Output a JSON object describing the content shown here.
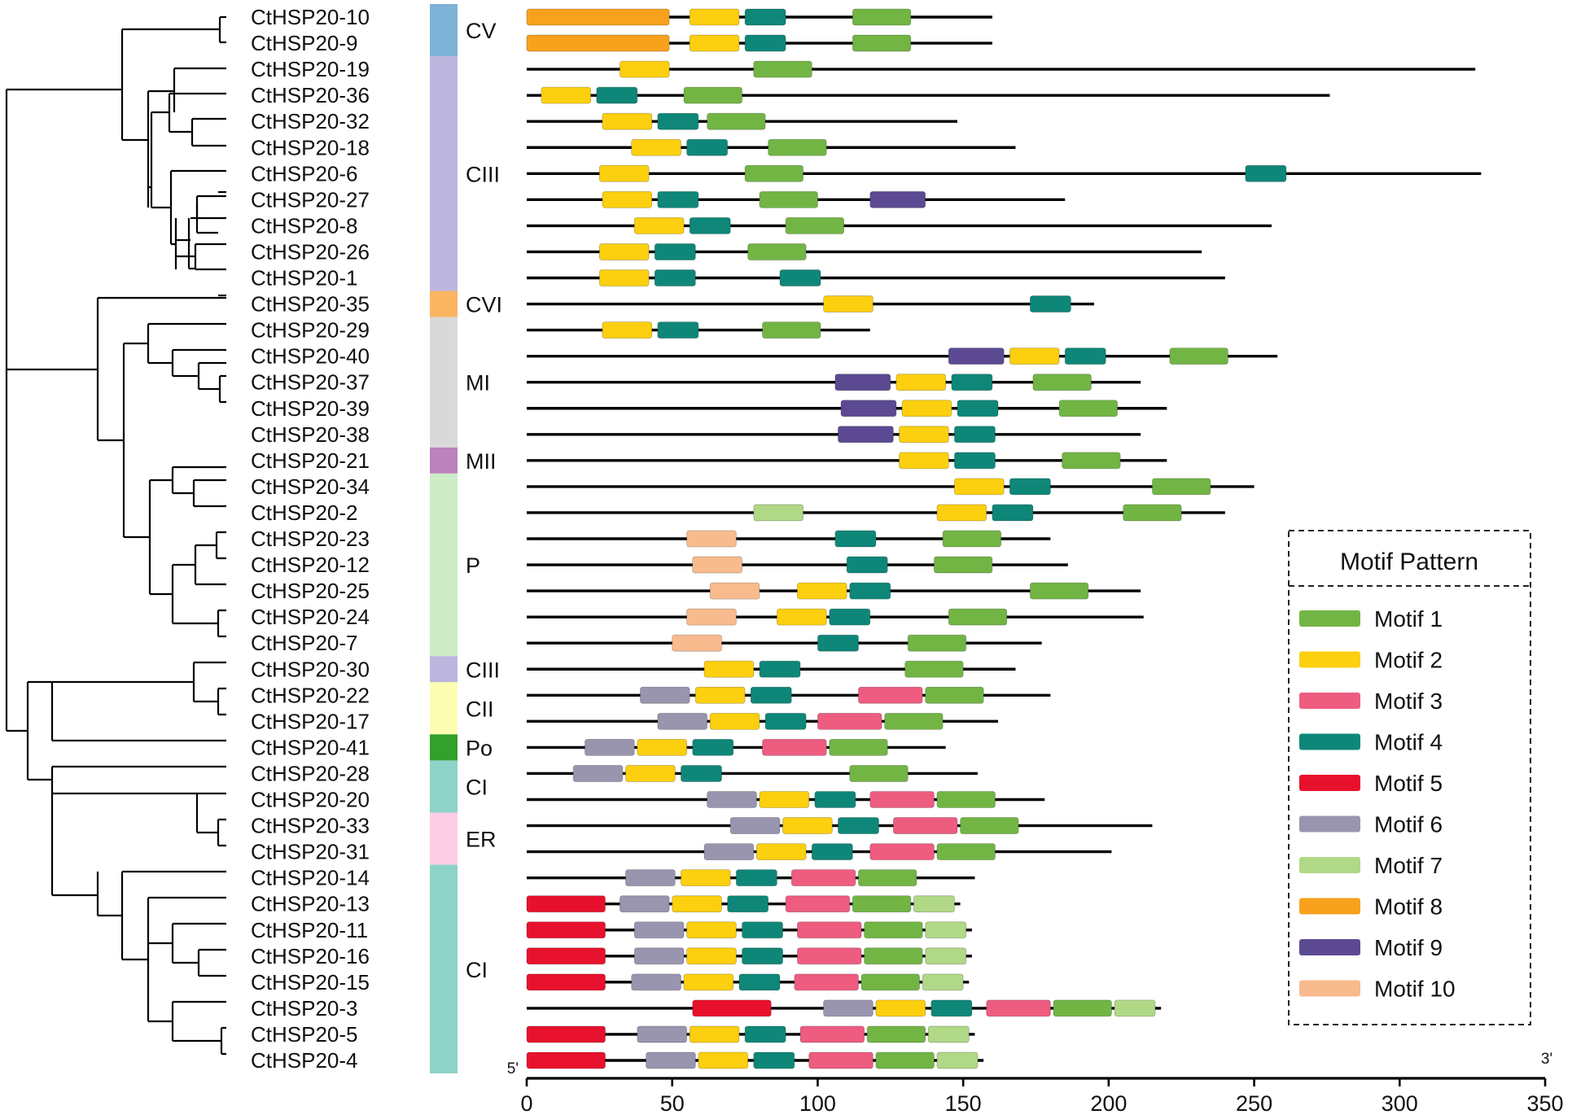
{
  "chart_data": {
    "type": "motif-diagram",
    "axis": {
      "min": 0,
      "max": 350,
      "ticks": [
        0,
        50,
        100,
        150,
        200,
        250,
        300,
        350
      ],
      "start_label": "5'",
      "end_label": "3'"
    },
    "legend": {
      "title": "Motif Pattern",
      "items": [
        {
          "label": "Motif 1",
          "color": "#72b544"
        },
        {
          "label": "Motif 2",
          "color": "#fccf0f"
        },
        {
          "label": "Motif 3",
          "color": "#ee5c80"
        },
        {
          "label": "Motif 4",
          "color": "#0e8778"
        },
        {
          "label": "Motif 5",
          "color": "#e8112d"
        },
        {
          "label": "Motif 6",
          "color": "#9995ae"
        },
        {
          "label": "Motif 7",
          "color": "#b0d887"
        },
        {
          "label": "Motif 8",
          "color": "#f8a11c"
        },
        {
          "label": "Motif 9",
          "color": "#5b4a92"
        },
        {
          "label": "Motif 10",
          "color": "#f8bb8e"
        }
      ]
    },
    "groups": [
      {
        "label": "CV",
        "color": "#7eb2d6",
        "first": 0,
        "last": 1
      },
      {
        "label": "CIII",
        "color": "#bcb6de",
        "first": 2,
        "last": 10
      },
      {
        "label": "CVI",
        "color": "#fbb462",
        "first": 11,
        "last": 11
      },
      {
        "label": "MI",
        "color": "#d9d9d9",
        "first": 12,
        "last": 16
      },
      {
        "label": "MII",
        "color": "#bb82bd",
        "first": 17,
        "last": 17
      },
      {
        "label": "P",
        "color": "#cdebc6",
        "first": 18,
        "last": 24
      },
      {
        "label": "CIII",
        "color": "#bcb6de",
        "first": 25,
        "last": 25
      },
      {
        "label": "CII",
        "color": "#fefeb2",
        "first": 26,
        "last": 27
      },
      {
        "label": "Po",
        "color": "#33a02b",
        "first": 28,
        "last": 28
      },
      {
        "label": "CI",
        "color": "#8dd3c7",
        "first": 29,
        "last": 30
      },
      {
        "label": "ER",
        "color": "#fccde5",
        "first": 31,
        "last": 32
      },
      {
        "label": "CI",
        "color": "#8dd3c7",
        "first": 33,
        "last": 40
      }
    ],
    "genes": [
      {
        "name": "CtHSP20-10",
        "length": 160,
        "motifs": [
          [
            8,
            0,
            49
          ],
          [
            2,
            56,
            73
          ],
          [
            4,
            75,
            89
          ],
          [
            1,
            112,
            132
          ]
        ]
      },
      {
        "name": "CtHSP20-9",
        "length": 160,
        "motifs": [
          [
            8,
            0,
            49
          ],
          [
            2,
            56,
            73
          ],
          [
            4,
            75,
            89
          ],
          [
            1,
            112,
            132
          ]
        ]
      },
      {
        "name": "CtHSP20-19",
        "length": 326,
        "motifs": [
          [
            2,
            32,
            49
          ],
          [
            1,
            78,
            98
          ]
        ]
      },
      {
        "name": "CtHSP20-36",
        "length": 276,
        "motifs": [
          [
            2,
            5,
            22
          ],
          [
            4,
            24,
            38
          ],
          [
            1,
            54,
            74
          ]
        ]
      },
      {
        "name": "CtHSP20-32",
        "length": 148,
        "motifs": [
          [
            2,
            26,
            43
          ],
          [
            4,
            45,
            59
          ],
          [
            1,
            62,
            82
          ]
        ]
      },
      {
        "name": "CtHSP20-18",
        "length": 168,
        "motifs": [
          [
            2,
            36,
            53
          ],
          [
            4,
            55,
            69
          ],
          [
            1,
            83,
            103
          ]
        ]
      },
      {
        "name": "CtHSP20-6",
        "length": 328,
        "motifs": [
          [
            2,
            25,
            42
          ],
          [
            1,
            75,
            95
          ],
          [
            4,
            247,
            261
          ]
        ]
      },
      {
        "name": "CtHSP20-27",
        "length": 185,
        "motifs": [
          [
            2,
            26,
            43
          ],
          [
            4,
            45,
            59
          ],
          [
            1,
            80,
            100
          ],
          [
            9,
            118,
            137
          ]
        ]
      },
      {
        "name": "CtHSP20-8",
        "length": 256,
        "motifs": [
          [
            2,
            37,
            54
          ],
          [
            4,
            56,
            70
          ],
          [
            1,
            89,
            109
          ]
        ]
      },
      {
        "name": "CtHSP20-26",
        "length": 232,
        "motifs": [
          [
            2,
            25,
            42
          ],
          [
            4,
            44,
            58
          ],
          [
            1,
            76,
            96
          ]
        ]
      },
      {
        "name": "CtHSP20-1",
        "length": 240,
        "motifs": [
          [
            2,
            25,
            42
          ],
          [
            4,
            44,
            58
          ],
          [
            4,
            87,
            101
          ]
        ]
      },
      {
        "name": "CtHSP20-35",
        "length": 195,
        "motifs": [
          [
            2,
            102,
            119
          ],
          [
            4,
            173,
            187
          ]
        ]
      },
      {
        "name": "CtHSP20-29",
        "length": 118,
        "motifs": [
          [
            2,
            26,
            43
          ],
          [
            4,
            45,
            59
          ],
          [
            1,
            81,
            101
          ]
        ]
      },
      {
        "name": "CtHSP20-40",
        "length": 258,
        "motifs": [
          [
            9,
            145,
            164
          ],
          [
            2,
            166,
            183
          ],
          [
            4,
            185,
            199
          ],
          [
            1,
            221,
            241
          ]
        ]
      },
      {
        "name": "CtHSP20-37",
        "length": 211,
        "motifs": [
          [
            9,
            106,
            125
          ],
          [
            2,
            127,
            144
          ],
          [
            4,
            146,
            160
          ],
          [
            1,
            174,
            194
          ]
        ]
      },
      {
        "name": "CtHSP20-39",
        "length": 220,
        "motifs": [
          [
            9,
            108,
            127
          ],
          [
            2,
            129,
            146
          ],
          [
            4,
            148,
            162
          ],
          [
            1,
            183,
            203
          ]
        ]
      },
      {
        "name": "CtHSP20-38",
        "length": 211,
        "motifs": [
          [
            9,
            107,
            126
          ],
          [
            2,
            128,
            145
          ],
          [
            4,
            147,
            161
          ]
        ]
      },
      {
        "name": "CtHSP20-21",
        "length": 220,
        "motifs": [
          [
            2,
            128,
            145
          ],
          [
            4,
            147,
            161
          ],
          [
            1,
            184,
            204
          ]
        ]
      },
      {
        "name": "CtHSP20-34",
        "length": 250,
        "motifs": [
          [
            2,
            147,
            164
          ],
          [
            4,
            166,
            180
          ],
          [
            1,
            215,
            235
          ]
        ]
      },
      {
        "name": "CtHSP20-2",
        "length": 240,
        "motifs": [
          [
            7,
            78,
            95
          ],
          [
            2,
            141,
            158
          ],
          [
            4,
            160,
            174
          ],
          [
            1,
            205,
            225
          ]
        ]
      },
      {
        "name": "CtHSP20-23",
        "length": 180,
        "motifs": [
          [
            10,
            55,
            72
          ],
          [
            4,
            106,
            120
          ],
          [
            1,
            143,
            163
          ]
        ]
      },
      {
        "name": "CtHSP20-12",
        "length": 186,
        "motifs": [
          [
            10,
            57,
            74
          ],
          [
            4,
            110,
            124
          ],
          [
            1,
            140,
            160
          ]
        ]
      },
      {
        "name": "CtHSP20-25",
        "length": 211,
        "motifs": [
          [
            10,
            63,
            80
          ],
          [
            2,
            93,
            110
          ],
          [
            4,
            111,
            125
          ],
          [
            1,
            173,
            193
          ]
        ]
      },
      {
        "name": "CtHSP20-24",
        "length": 212,
        "motifs": [
          [
            10,
            55,
            72
          ],
          [
            2,
            86,
            103
          ],
          [
            4,
            104,
            118
          ],
          [
            1,
            145,
            165
          ]
        ]
      },
      {
        "name": "CtHSP20-7",
        "length": 177,
        "motifs": [
          [
            10,
            50,
            67
          ],
          [
            4,
            100,
            114
          ],
          [
            1,
            131,
            151
          ]
        ]
      },
      {
        "name": "CtHSP20-30",
        "length": 168,
        "motifs": [
          [
            2,
            61,
            78
          ],
          [
            4,
            80,
            94
          ],
          [
            1,
            130,
            150
          ]
        ]
      },
      {
        "name": "CtHSP20-22",
        "length": 180,
        "motifs": [
          [
            6,
            39,
            56
          ],
          [
            2,
            58,
            75
          ],
          [
            4,
            77,
            91
          ],
          [
            3,
            114,
            136
          ],
          [
            1,
            137,
            157
          ]
        ]
      },
      {
        "name": "CtHSP20-17",
        "length": 162,
        "motifs": [
          [
            6,
            45,
            62
          ],
          [
            2,
            63,
            80
          ],
          [
            4,
            82,
            96
          ],
          [
            3,
            100,
            122
          ],
          [
            1,
            123,
            143
          ]
        ]
      },
      {
        "name": "CtHSP20-41",
        "length": 144,
        "motifs": [
          [
            6,
            20,
            37
          ],
          [
            2,
            38,
            55
          ],
          [
            4,
            57,
            71
          ],
          [
            3,
            81,
            103
          ],
          [
            1,
            104,
            124
          ]
        ]
      },
      {
        "name": "CtHSP20-28",
        "length": 155,
        "motifs": [
          [
            6,
            16,
            33
          ],
          [
            2,
            34,
            51
          ],
          [
            4,
            53,
            67
          ],
          [
            1,
            111,
            131
          ]
        ]
      },
      {
        "name": "CtHSP20-20",
        "length": 178,
        "motifs": [
          [
            6,
            62,
            79
          ],
          [
            2,
            80,
            97
          ],
          [
            4,
            99,
            113
          ],
          [
            3,
            118,
            140
          ],
          [
            1,
            141,
            161
          ]
        ]
      },
      {
        "name": "CtHSP20-33",
        "length": 215,
        "motifs": [
          [
            6,
            70,
            87
          ],
          [
            2,
            88,
            105
          ],
          [
            4,
            107,
            121
          ],
          [
            3,
            126,
            148
          ],
          [
            1,
            149,
            169
          ]
        ]
      },
      {
        "name": "CtHSP20-31",
        "length": 201,
        "motifs": [
          [
            6,
            61,
            78
          ],
          [
            2,
            79,
            96
          ],
          [
            4,
            98,
            112
          ],
          [
            3,
            118,
            140
          ],
          [
            1,
            141,
            161
          ]
        ]
      },
      {
        "name": "CtHSP20-14",
        "length": 154,
        "motifs": [
          [
            6,
            34,
            51
          ],
          [
            2,
            53,
            70
          ],
          [
            4,
            72,
            86
          ],
          [
            3,
            91,
            113
          ],
          [
            1,
            114,
            134
          ]
        ]
      },
      {
        "name": "CtHSP20-13",
        "length": 149,
        "motifs": [
          [
            5,
            0,
            27
          ],
          [
            6,
            32,
            49
          ],
          [
            2,
            50,
            67
          ],
          [
            4,
            69,
            83
          ],
          [
            3,
            89,
            111
          ],
          [
            1,
            112,
            132
          ],
          [
            7,
            133,
            147
          ]
        ]
      },
      {
        "name": "CtHSP20-11",
        "length": 153,
        "motifs": [
          [
            5,
            0,
            27
          ],
          [
            6,
            37,
            54
          ],
          [
            2,
            55,
            72
          ],
          [
            4,
            74,
            88
          ],
          [
            3,
            93,
            115
          ],
          [
            1,
            116,
            136
          ],
          [
            7,
            137,
            151
          ]
        ]
      },
      {
        "name": "CtHSP20-16",
        "length": 153,
        "motifs": [
          [
            5,
            0,
            27
          ],
          [
            6,
            37,
            54
          ],
          [
            2,
            55,
            72
          ],
          [
            4,
            74,
            88
          ],
          [
            3,
            93,
            115
          ],
          [
            1,
            116,
            136
          ],
          [
            7,
            137,
            151
          ]
        ]
      },
      {
        "name": "CtHSP20-15",
        "length": 152,
        "motifs": [
          [
            5,
            0,
            27
          ],
          [
            6,
            36,
            53
          ],
          [
            2,
            54,
            71
          ],
          [
            4,
            73,
            87
          ],
          [
            3,
            92,
            114
          ],
          [
            1,
            115,
            135
          ],
          [
            7,
            136,
            150
          ]
        ]
      },
      {
        "name": "CtHSP20-3",
        "length": 218,
        "motifs": [
          [
            5,
            57,
            84
          ],
          [
            6,
            102,
            119
          ],
          [
            2,
            120,
            137
          ],
          [
            4,
            139,
            153
          ],
          [
            3,
            158,
            180
          ],
          [
            1,
            181,
            201
          ],
          [
            7,
            202,
            216
          ]
        ]
      },
      {
        "name": "CtHSP20-5",
        "length": 154,
        "motifs": [
          [
            5,
            0,
            27
          ],
          [
            6,
            38,
            55
          ],
          [
            2,
            56,
            73
          ],
          [
            4,
            75,
            89
          ],
          [
            3,
            94,
            116
          ],
          [
            1,
            117,
            137
          ],
          [
            7,
            138,
            152
          ]
        ]
      },
      {
        "name": "CtHSP20-4",
        "length": 157,
        "motifs": [
          [
            5,
            0,
            27
          ],
          [
            6,
            41,
            58
          ],
          [
            2,
            59,
            76
          ],
          [
            4,
            78,
            92
          ],
          [
            3,
            97,
            119
          ],
          [
            1,
            120,
            140
          ],
          [
            7,
            141,
            155
          ]
        ]
      }
    ]
  }
}
